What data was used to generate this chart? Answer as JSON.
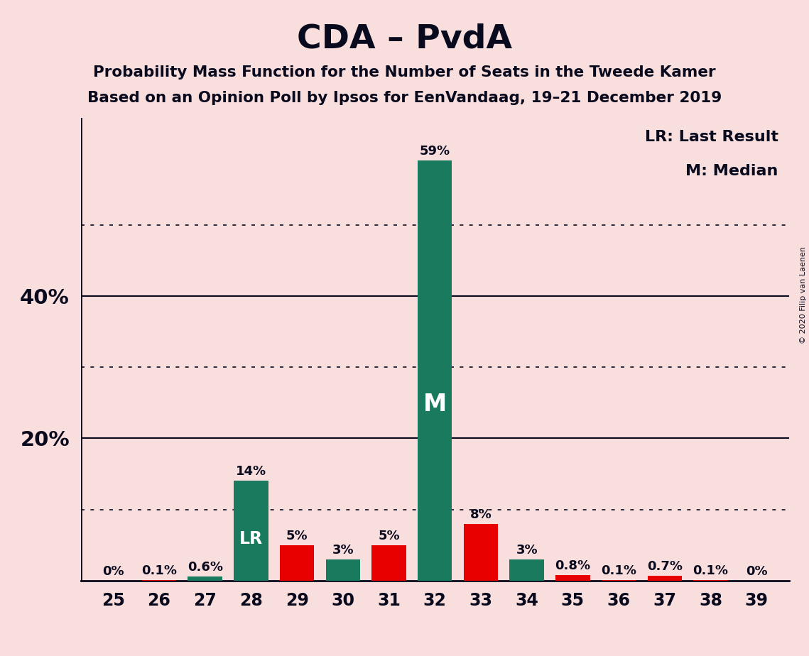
{
  "title": "CDA – PvdA",
  "subtitle1": "Probability Mass Function for the Number of Seats in the Tweede Kamer",
  "subtitle2": "Based on an Opinion Poll by Ipsos for EenVandaag, 19–21 December 2019",
  "copyright": "© 2020 Filip van Laenen",
  "legend_lr": "LR: Last Result",
  "legend_m": "M: Median",
  "background_color": "#f9dede",
  "teal_color": "#1a7a5e",
  "red_color": "#e80000",
  "seats": [
    25,
    26,
    27,
    28,
    29,
    30,
    31,
    32,
    33,
    34,
    35,
    36,
    37,
    38,
    39
  ],
  "teal_values": [
    0.0,
    0.0,
    0.006,
    0.14,
    0.0,
    0.03,
    0.05,
    0.59,
    0.0,
    0.03,
    0.0,
    0.0,
    0.0,
    0.0,
    0.0
  ],
  "red_values": [
    0.0,
    0.001,
    0.0,
    0.0,
    0.05,
    0.0,
    0.05,
    0.0,
    0.08,
    0.0,
    0.008,
    0.001,
    0.007,
    0.001,
    0.0
  ],
  "teal_labels": [
    "",
    "",
    "0.6%",
    "14%",
    "",
    "3%",
    "5%",
    "59%",
    "",
    "3%",
    "",
    "",
    "",
    "",
    ""
  ],
  "red_labels": [
    "0%",
    "0.1%",
    "",
    "",
    "5%",
    "",
    "",
    "",
    "8%",
    "",
    "0.8%",
    "0.1%",
    "0.7%",
    "0.1%",
    "0%"
  ],
  "lr_seat": 28,
  "median_seat": 32,
  "ylim": [
    0,
    0.65
  ],
  "yticks": [
    0.0,
    0.1,
    0.2,
    0.3,
    0.4,
    0.5,
    0.6
  ],
  "ytick_labels": [
    "",
    "",
    "20%",
    "",
    "40%",
    "",
    ""
  ],
  "dotted_yticks": [
    0.1,
    0.3,
    0.5
  ],
  "solid_yticks": [
    0.2,
    0.4
  ],
  "bar_width": 0.75
}
